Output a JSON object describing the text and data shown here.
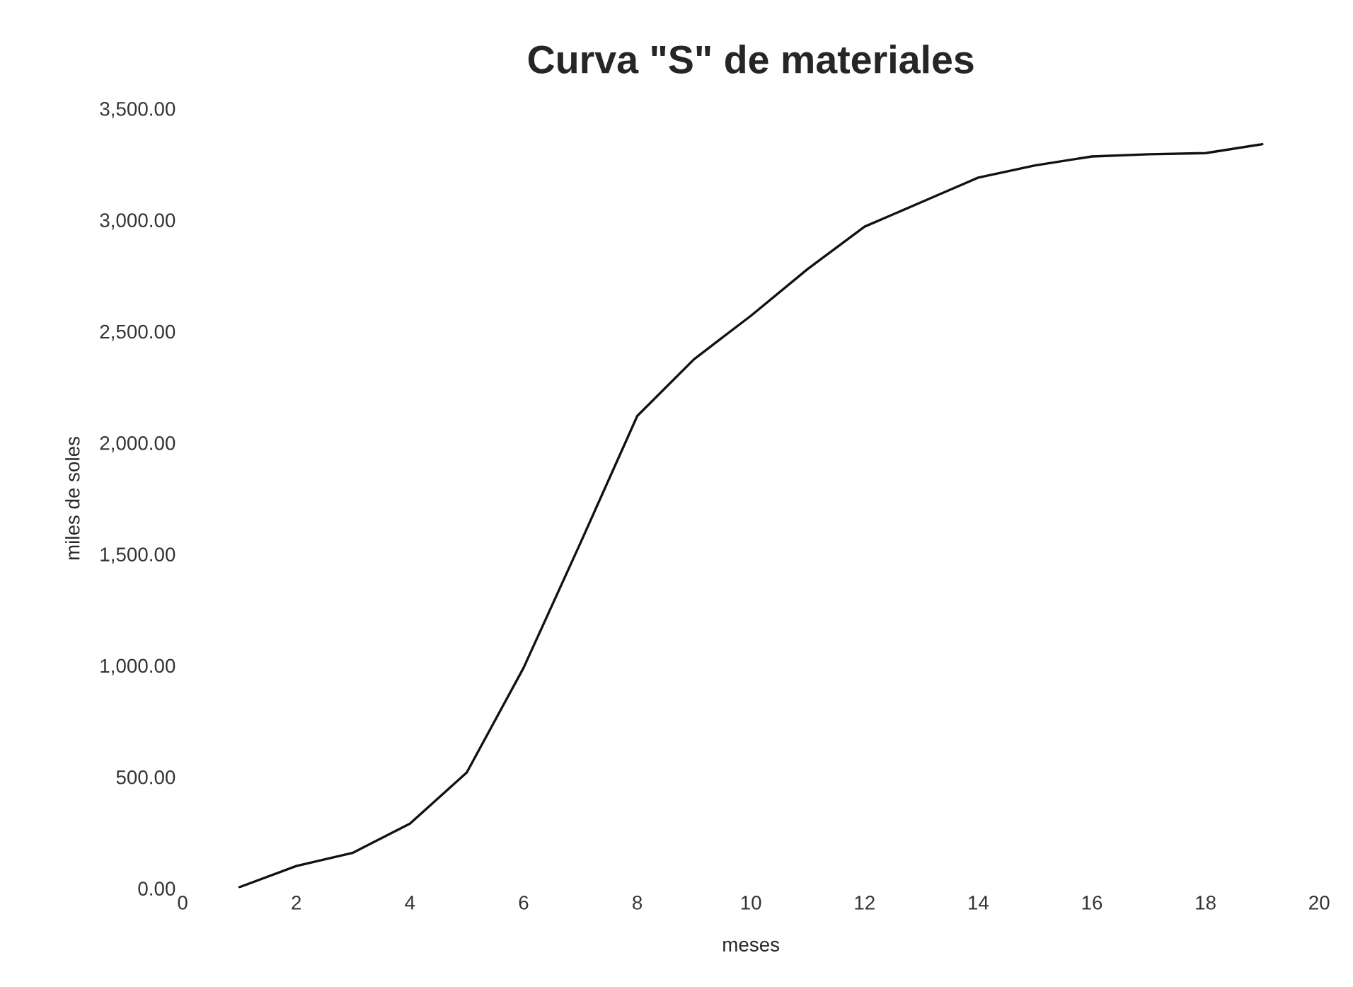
{
  "chart_data": {
    "type": "line",
    "title": "Curva \"S\" de materiales",
    "xlabel": "meses",
    "ylabel": "miles de soles",
    "x": [
      1,
      2,
      3,
      4,
      5,
      6,
      7,
      8,
      9,
      10,
      11,
      12,
      13,
      14,
      15,
      16,
      17,
      18,
      19
    ],
    "series": [
      {
        "color": "#111111",
        "values": [
          5,
          100,
          160,
          290,
          520,
          990,
          1550,
          2120,
          2375,
          2570,
          2780,
          2970,
          3080,
          3190,
          3245,
          3285,
          3295,
          3300,
          3340
        ]
      }
    ],
    "xlim": [
      0,
      20
    ],
    "xticks": [
      0,
      2,
      4,
      6,
      8,
      10,
      12,
      14,
      16,
      18,
      20
    ],
    "ylim": [
      0,
      3500
    ],
    "yticks": [
      {
        "value": 0,
        "label": "0.00"
      },
      {
        "value": 500,
        "label": "500.00"
      },
      {
        "value": 1000,
        "label": "1,000.00"
      },
      {
        "value": 1500,
        "label": "1,500.00"
      },
      {
        "value": 2000,
        "label": "2,000.00"
      },
      {
        "value": 2500,
        "label": "2,500.00"
      },
      {
        "value": 3000,
        "label": "3,000.00"
      },
      {
        "value": 3500,
        "label": "3,500.00"
      }
    ],
    "grid": false,
    "marker": "none",
    "line_style": "solid"
  }
}
